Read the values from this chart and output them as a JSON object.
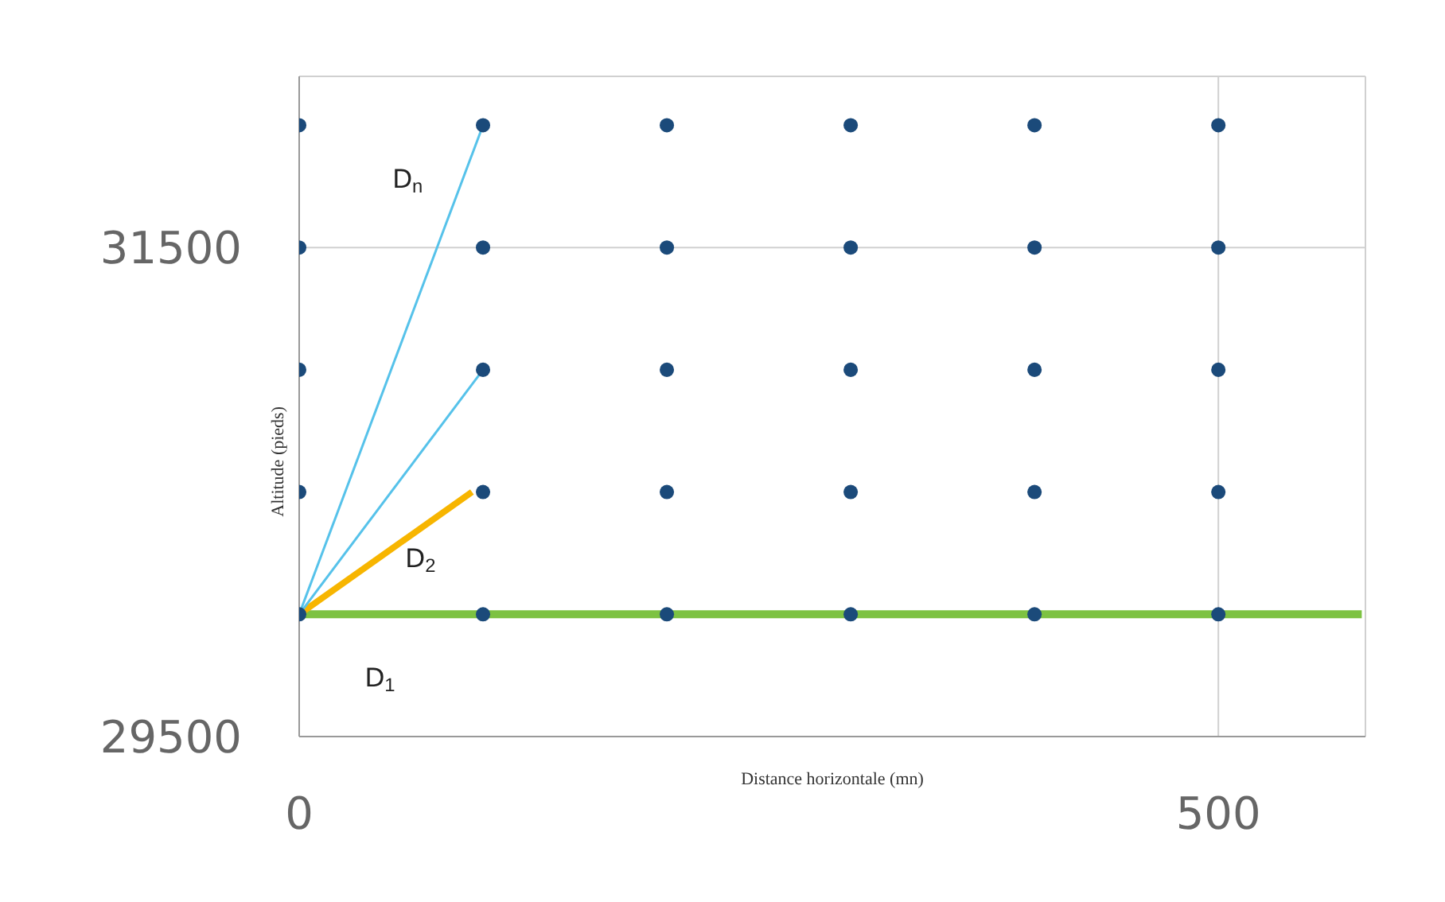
{
  "chart_data": {
    "type": "scatter",
    "xlabel": "Distance horizontale (mn)",
    "ylabel": "Altitude (pieds)",
    "xlim": [
      0,
      580
    ],
    "xticks": [
      0,
      500
    ],
    "ylim": [
      29500,
      32200
    ],
    "yticks": [
      29500,
      31500
    ],
    "grid": true,
    "legend": false,
    "series": [
      {
        "marker": "circle",
        "color": "#1b4a7a",
        "x": [
          0,
          100,
          200,
          300,
          400,
          500,
          0,
          100,
          200,
          300,
          400,
          500,
          0,
          100,
          200,
          300,
          400,
          500,
          0,
          100,
          200,
          300,
          400,
          500,
          0,
          100,
          200,
          300,
          400,
          500
        ],
        "values": [
          32000,
          32000,
          32000,
          32000,
          32000,
          32000,
          31500,
          31500,
          31500,
          31500,
          31500,
          31500,
          31000,
          31000,
          31000,
          31000,
          31000,
          31000,
          30500,
          30500,
          30500,
          30500,
          30500,
          30500,
          30000,
          30000,
          30000,
          30000,
          30000,
          30000
        ]
      },
      {
        "type": "line",
        "marker": "none",
        "color": "#7dc242",
        "x": [
          0,
          578
        ],
        "values": [
          30000,
          30000
        ]
      },
      {
        "type": "line",
        "marker": "none",
        "color": "#f7b500",
        "x": [
          0,
          94
        ],
        "values": [
          30000,
          30500
        ]
      },
      {
        "type": "line",
        "marker": "none",
        "color": "#56c2ea",
        "x": [
          0,
          100
        ],
        "values": [
          30000,
          31000
        ]
      },
      {
        "type": "line",
        "marker": "none",
        "color": "#56c2ea",
        "x": [
          0,
          100
        ],
        "values": [
          30000,
          32000
        ]
      }
    ],
    "annotations": [
      "D$_{1}$",
      "D$_{2}$",
      "D$_{n}$"
    ]
  }
}
